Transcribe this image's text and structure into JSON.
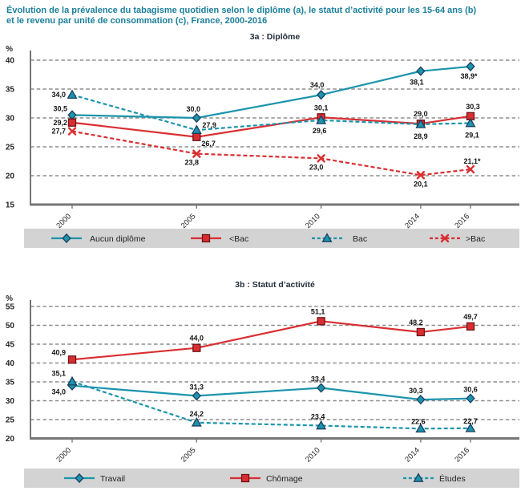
{
  "title": {
    "line1": "Évolution de la prévalence du tabagisme quotidien selon le diplôme (a), le statut d’activité pour les 15-64 ans (b)",
    "line2": "et le revenu par unité de consommation (c), France, 2000-2016"
  },
  "colors": {
    "title": "#1b7f9b",
    "subtitle": "#232d39",
    "teal": "#1b94ac",
    "red": "#d92e31",
    "marker_border_teal": "#1c3f60",
    "marker_border_red": "#6e1317",
    "grid": "#8d8d8d",
    "axis": "#767676",
    "tick_text": "#262626",
    "data_label": "#141414",
    "legend_bg": "#d3d3d3",
    "legend_text": "#1f1f1f"
  },
  "chart_data": [
    {
      "id": "3a",
      "type": "line",
      "subtitle": "3a : Diplôme",
      "unit_label": "%",
      "x": [
        2000,
        2005,
        2010,
        2014,
        2016
      ],
      "x_tick_labels": [
        "2000",
        "2005",
        "2010",
        "2014",
        "2016"
      ],
      "ylim": [
        15,
        40
      ],
      "yticks": [
        15,
        20,
        25,
        30,
        35,
        40
      ],
      "grid": "horizontal-dashed",
      "legend_position": "bottom-band",
      "series": [
        {
          "name": "Aucun diplôme",
          "color": "teal",
          "line": "solid",
          "marker": "diamond",
          "values": [
            30.5,
            30.0,
            34.0,
            38.1,
            38.9
          ],
          "point_labels": [
            "30,5",
            "30,0",
            "34,0",
            "38,1",
            "38,9*"
          ],
          "label_anchor": [
            "end",
            "middle",
            "middle",
            "middle",
            "middle"
          ],
          "label_dx": [
            -6,
            -4,
            -5,
            -5,
            -2
          ],
          "label_dy": [
            -5,
            -8,
            -9,
            17,
            15
          ]
        },
        {
          "name": "<Bac",
          "color": "red",
          "line": "solid",
          "marker": "square",
          "values": [
            29.2,
            26.7,
            30.1,
            29.0,
            30.3
          ],
          "point_labels": [
            "29,2",
            "26,7",
            "30,1",
            "29,0",
            "30,3"
          ],
          "label_anchor": [
            "end",
            "start",
            "middle",
            "middle",
            "middle"
          ],
          "label_dx": [
            -6,
            6,
            0,
            0,
            3
          ],
          "label_dy": [
            3,
            11,
            -9,
            -9,
            -9
          ]
        },
        {
          "name": "Bac",
          "color": "teal",
          "line": "dashed",
          "marker": "triangle",
          "values": [
            34.0,
            27.9,
            29.6,
            28.9,
            29.1
          ],
          "point_labels": [
            "34,0",
            "27,9",
            "29,6",
            "28,9",
            "29,1"
          ],
          "label_anchor": [
            "end",
            "start",
            "middle",
            "middle",
            "middle"
          ],
          "label_dx": [
            -8,
            7,
            -2,
            0,
            2
          ],
          "label_dy": [
            3,
            -3,
            16,
            18,
            18
          ]
        },
        {
          "name": ">Bac",
          "color": "red",
          "line": "dashed",
          "marker": "x",
          "values": [
            27.7,
            23.8,
            23.0,
            20.1,
            21.1
          ],
          "point_labels": [
            "27,7",
            "23,8",
            "23,0",
            "20,1",
            "21,1*"
          ],
          "label_anchor": [
            "end",
            "middle",
            "middle",
            "middle",
            "middle"
          ],
          "label_dx": [
            -8,
            -6,
            -6,
            0,
            2
          ],
          "label_dy": [
            3,
            14,
            14,
            14,
            -7
          ]
        }
      ]
    },
    {
      "id": "3b",
      "type": "line",
      "subtitle": "3b : Statut d’activité",
      "unit_label": "%",
      "x": [
        2000,
        2005,
        2010,
        2014,
        2016
      ],
      "x_tick_labels": [
        "2000",
        "2005",
        "2010",
        "2014",
        "2016"
      ],
      "ylim": [
        20,
        55
      ],
      "yticks": [
        20,
        25,
        30,
        35,
        40,
        45,
        50,
        55
      ],
      "grid": "horizontal-dashed",
      "legend_position": "bottom-band",
      "series": [
        {
          "name": "Travail",
          "color": "teal",
          "line": "solid",
          "marker": "diamond",
          "values": [
            34.0,
            31.3,
            33.4,
            30.3,
            30.6
          ],
          "point_labels": [
            "34,0",
            "31,3",
            "33,4",
            "30,3",
            "30,6"
          ],
          "label_anchor": [
            "end",
            "middle",
            "middle",
            "middle",
            "middle"
          ],
          "label_dx": [
            -8,
            0,
            -4,
            -6,
            0
          ],
          "label_dy": [
            11,
            -8,
            -8,
            -8,
            -8
          ]
        },
        {
          "name": "Chômage",
          "color": "red",
          "line": "solid",
          "marker": "square",
          "values": [
            40.9,
            44.0,
            51.1,
            48.2,
            49.7
          ],
          "point_labels": [
            "40,9",
            "44,0",
            "51,1",
            "48,2",
            "49,7"
          ],
          "label_anchor": [
            "end",
            "middle",
            "middle",
            "middle",
            "middle"
          ],
          "label_dx": [
            -8,
            0,
            -4,
            -6,
            0
          ],
          "label_dy": [
            -6,
            -9,
            -9,
            -9,
            -9
          ]
        },
        {
          "name": "Études",
          "color": "teal",
          "line": "dashed",
          "marker": "triangle",
          "values": [
            35.1,
            24.2,
            23.4,
            22.6,
            22.7
          ],
          "point_labels": [
            "35,1",
            "24,2",
            "23,4",
            "22,6",
            "22,7"
          ],
          "label_anchor": [
            "end",
            "middle",
            "middle",
            "middle",
            "middle"
          ],
          "label_dx": [
            -8,
            0,
            -4,
            -3,
            0
          ],
          "label_dy": [
            -7,
            -8,
            -8,
            -6,
            -6
          ]
        }
      ]
    }
  ]
}
